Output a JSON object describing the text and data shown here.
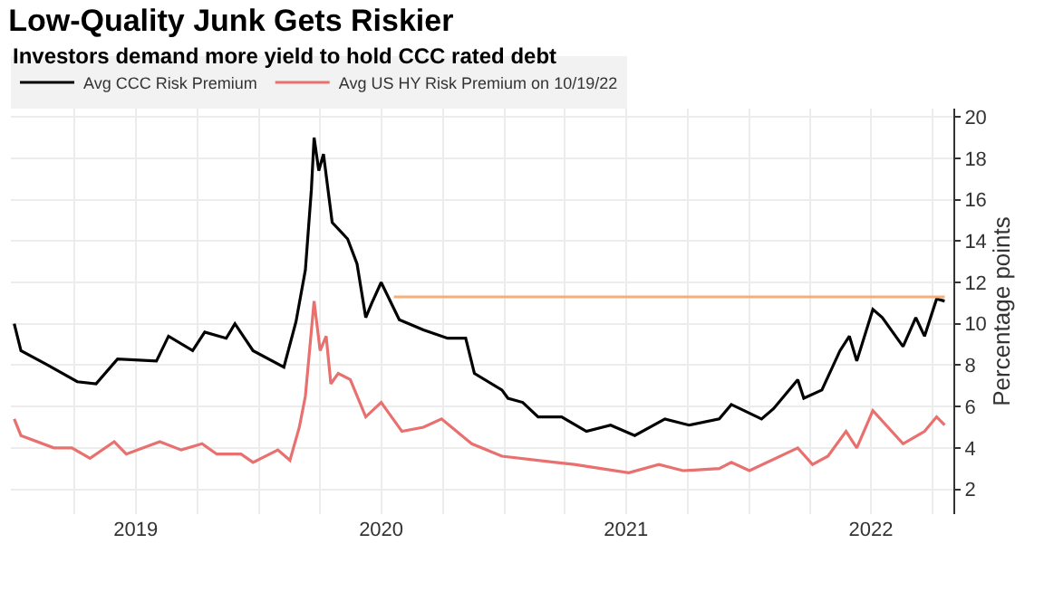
{
  "chart_data": {
    "type": "line",
    "title": "Low-Quality Junk Gets Riskier",
    "subtitle": "Investors demand more yield to hold CCC rated debt",
    "ylabel": "Percentage points",
    "x": [
      "2019-01-01",
      "2019-01-11",
      "2019-02-20",
      "2019-04-05",
      "2019-05-03",
      "2019-06-04",
      "2019-08-01",
      "2019-08-19",
      "2019-09-24",
      "2019-10-12",
      "2019-11-13",
      "2019-11-26",
      "2019-12-23",
      "2020-02-07",
      "2020-02-25",
      "2020-03-10",
      "2020-03-19",
      "2020-03-23",
      "2020-03-30",
      "2020-04-06",
      "2020-04-19",
      "2020-05-12",
      "2020-05-26",
      "2020-06-08",
      "2020-06-17",
      "2020-07-01",
      "2020-07-28",
      "2020-09-02",
      "2020-10-08",
      "2020-11-04",
      "2020-11-17",
      "2020-12-28",
      "2021-01-06",
      "2021-01-28",
      "2021-02-20",
      "2021-03-27",
      "2021-05-03",
      "2021-06-08",
      "2021-07-14",
      "2021-08-28",
      "2021-10-03",
      "2021-11-17",
      "2021-12-05",
      "2022-01-19",
      "2022-02-06",
      "2022-03-14",
      "2022-03-23",
      "2022-04-19",
      "2022-05-16",
      "2022-05-30",
      "2022-06-10",
      "2022-07-04",
      "2022-07-18",
      "2022-08-18",
      "2022-09-06",
      "2022-09-19",
      "2022-10-07",
      "2022-10-19"
    ],
    "series": [
      {
        "name": "Avg CCC Risk Premium",
        "color": "#000000",
        "values": [
          10.0,
          8.7,
          8.0,
          7.2,
          7.1,
          8.3,
          8.2,
          9.4,
          8.7,
          9.6,
          9.3,
          10.0,
          8.7,
          7.9,
          10.1,
          12.6,
          16.5,
          19.0,
          17.4,
          18.2,
          14.9,
          14.1,
          12.9,
          10.3,
          11.0,
          12.0,
          10.2,
          9.7,
          9.3,
          9.3,
          7.6,
          6.8,
          6.4,
          6.2,
          5.5,
          5.5,
          4.8,
          5.1,
          4.6,
          5.4,
          5.1,
          5.4,
          6.1,
          5.4,
          5.9,
          7.3,
          6.4,
          6.8,
          8.7,
          9.4,
          8.2,
          10.7,
          10.3,
          8.9,
          10.3,
          9.4,
          11.2,
          11.1
        ]
      },
      {
        "name": "Avg US HY Risk Premium on 10/19/22",
        "color": "#e8706e",
        "x": [
          "2019-01-01",
          "2019-01-11",
          "2019-03-01",
          "2019-03-28",
          "2019-04-24",
          "2019-05-30",
          "2019-06-17",
          "2019-08-06",
          "2019-09-07",
          "2019-10-08",
          "2019-10-30",
          "2019-12-05",
          "2019-12-23",
          "2020-01-29",
          "2020-02-16",
          "2020-03-01",
          "2020-03-10",
          "2020-03-23",
          "2020-04-01",
          "2020-04-10",
          "2020-04-17",
          "2020-04-28",
          "2020-05-16",
          "2020-06-08",
          "2020-07-01",
          "2020-08-01",
          "2020-09-02",
          "2020-09-29",
          "2020-11-13",
          "2020-12-28",
          "2021-03-18",
          "2021-04-15",
          "2021-07-05",
          "2021-08-19",
          "2021-09-24",
          "2021-11-17",
          "2021-12-05",
          "2022-01-01",
          "2022-03-14",
          "2022-04-05",
          "2022-04-28",
          "2022-05-25",
          "2022-06-10",
          "2022-07-04",
          "2022-08-18",
          "2022-09-19",
          "2022-10-07",
          "2022-10-19"
        ],
        "values": [
          5.4,
          4.6,
          4.0,
          4.0,
          3.5,
          4.3,
          3.7,
          4.3,
          3.9,
          4.2,
          3.7,
          3.7,
          3.3,
          3.9,
          3.4,
          5.0,
          6.5,
          11.1,
          8.7,
          9.4,
          7.1,
          7.6,
          7.3,
          5.5,
          6.2,
          4.8,
          5.0,
          5.4,
          4.2,
          3.6,
          3.3,
          3.2,
          2.8,
          3.2,
          2.9,
          3.0,
          3.3,
          2.9,
          4.0,
          3.2,
          3.6,
          4.8,
          4.0,
          5.8,
          4.2,
          4.8,
          5.5,
          5.1
        ]
      },
      {
        "color": "#f5b07a",
        "x": [
          "2020-07-20",
          "2022-10-19"
        ],
        "values": [
          11.3,
          11.3
        ]
      }
    ],
    "xlim": [
      "2018-12-27",
      "2022-11-01"
    ],
    "xticks": [
      {
        "value": "2019-04-01",
        "label": null
      },
      {
        "value": "2019-07-01",
        "label": "2019"
      },
      {
        "value": "2019-10-01",
        "label": null
      },
      {
        "value": "2020-01-01",
        "label": null
      },
      {
        "value": "2020-04-01",
        "label": null
      },
      {
        "value": "2020-07-01",
        "label": "2020"
      },
      {
        "value": "2020-10-01",
        "label": null
      },
      {
        "value": "2021-01-01",
        "label": null
      },
      {
        "value": "2021-04-01",
        "label": null
      },
      {
        "value": "2021-07-01",
        "label": "2021"
      },
      {
        "value": "2021-10-01",
        "label": null
      },
      {
        "value": "2022-01-01",
        "label": null
      },
      {
        "value": "2022-04-01",
        "label": null
      },
      {
        "value": "2022-07-01",
        "label": "2022"
      },
      {
        "value": "2022-10-01",
        "label": null
      }
    ],
    "ylim": [
      0.8,
      20.4
    ],
    "yticks": [
      2,
      4,
      6,
      8,
      10,
      12,
      14,
      16,
      18,
      20
    ],
    "grid": true,
    "legend": "top left",
    "marker": "none",
    "line_style": "solid"
  }
}
